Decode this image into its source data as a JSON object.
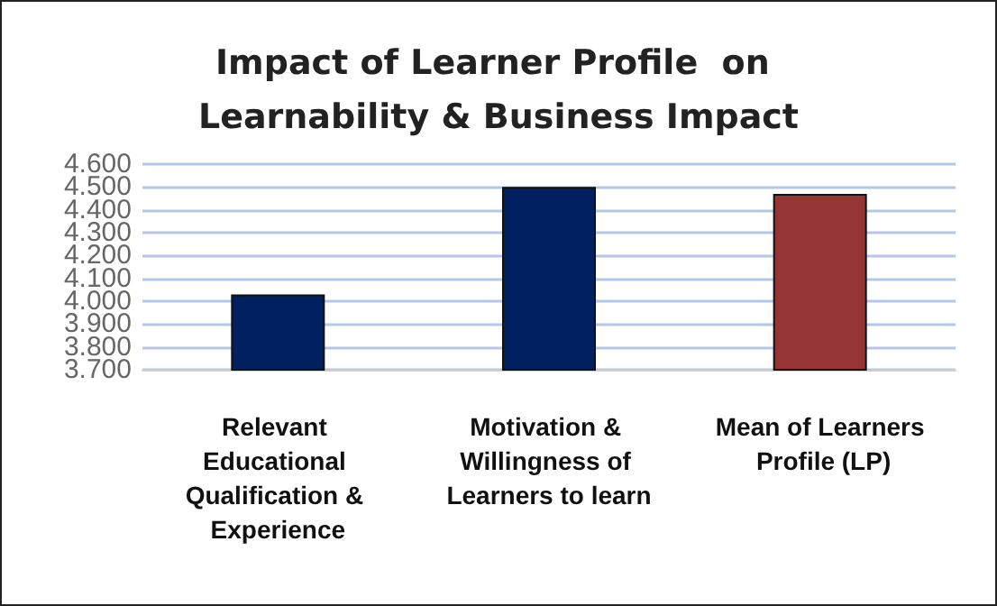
{
  "chart_data": {
    "type": "bar",
    "title": "Impact of Learner Profile  on Learnability & Business Impact",
    "categories": [
      "Relevant Educational Qualification & Experience",
      "Motivation & Willingness of Learners to learn",
      "Mean of Learners Profile (LP)"
    ],
    "values": [
      4.03,
      4.5,
      4.47
    ],
    "colors": [
      "#002060",
      "#002060",
      "#963634"
    ],
    "ylim": [
      3.7,
      4.6
    ],
    "yticks": [
      {
        "value": 3.7,
        "label": "3.700"
      },
      {
        "value": 3.8,
        "label": "3.800"
      },
      {
        "value": 3.9,
        "label": "3.900"
      },
      {
        "value": 4.0,
        "label": "4.000"
      },
      {
        "value": 4.1,
        "label": "4.100"
      },
      {
        "value": 4.2,
        "label": "4.200"
      },
      {
        "value": 4.3,
        "label": "4.300"
      },
      {
        "value": 4.4,
        "label": "4.400"
      },
      {
        "value": 4.5,
        "label": "4.500"
      },
      {
        "value": 4.6,
        "label": "4.600"
      }
    ],
    "grid": "y"
  }
}
